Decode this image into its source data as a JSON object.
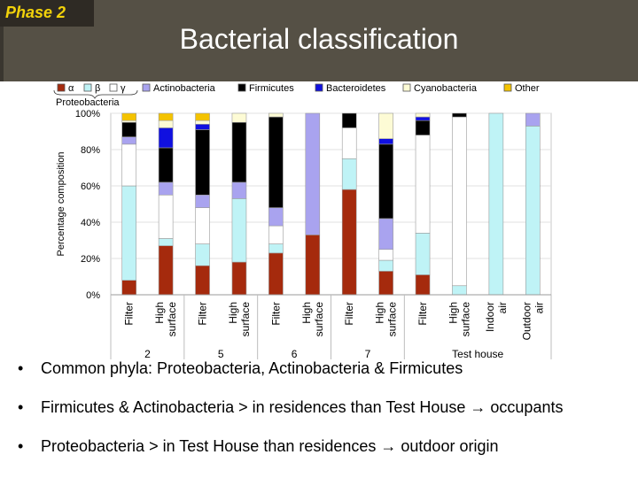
{
  "header": {
    "phase": "Phase 2",
    "title": "Bacterial classification"
  },
  "bullets": [
    "Common phyla: Proteobacteria, Actinobacteria & Firmicutes",
    "Firmicutes & Actinobacteria > in residences than Test House → occupants",
    "Proteobacteria > in Test House than residences → outdoor origin"
  ],
  "chart_data": {
    "type": "bar",
    "stacked": true,
    "ylabel": "Percentage composition",
    "yticks": [
      "0%",
      "20%",
      "40%",
      "60%",
      "80%",
      "100%"
    ],
    "ylim": [
      0,
      100
    ],
    "categories": [
      "Filter",
      "High surface",
      "Filter",
      "High surface",
      "Filter",
      "High surface",
      "Filter",
      "High surface",
      "Filter",
      "High surface",
      "Indoor air",
      "Outdoor air"
    ],
    "groups": [
      {
        "label": "2",
        "members": [
          0,
          1
        ]
      },
      {
        "label": "5",
        "members": [
          2,
          3
        ]
      },
      {
        "label": "6",
        "members": [
          4,
          5
        ]
      },
      {
        "label": "7",
        "members": [
          6,
          7
        ]
      },
      {
        "label": "Test house",
        "members": [
          8,
          9,
          10,
          11
        ]
      }
    ],
    "legend_group_label": "Proteobacteria",
    "series": [
      {
        "name": "α",
        "color": "#a52a0d",
        "values": [
          8,
          27,
          16,
          18,
          23,
          33,
          58,
          13,
          11,
          0,
          0,
          0
        ]
      },
      {
        "name": "β",
        "color": "#bff3f6",
        "values": [
          52,
          4,
          12,
          35,
          5,
          0,
          17,
          6,
          23,
          5,
          100,
          93
        ]
      },
      {
        "name": "γ",
        "color": "#ffffff",
        "values": [
          23,
          24,
          20,
          0,
          10,
          0,
          17,
          6,
          54,
          93,
          0,
          0
        ]
      },
      {
        "name": "Actinobacteria",
        "color": "#a9a3ef",
        "values": [
          4,
          7,
          7,
          9,
          10,
          67,
          0,
          17,
          0,
          0,
          0,
          7
        ]
      },
      {
        "name": "Firmicutes",
        "color": "#000000",
        "values": [
          8,
          19,
          36,
          33,
          50,
          0,
          8,
          41,
          8,
          2,
          0,
          0
        ]
      },
      {
        "name": "Bacteroidetes",
        "color": "#1010e0",
        "values": [
          0,
          11,
          3,
          0,
          0,
          0,
          0,
          3,
          2,
          0,
          0,
          0
        ]
      },
      {
        "name": "Cyanobacteria",
        "color": "#fdfbd5",
        "values": [
          1,
          4,
          2,
          5,
          2,
          0,
          0,
          14,
          2,
          0,
          0,
          0
        ]
      },
      {
        "name": "Other",
        "color": "#f4c300",
        "values": [
          4,
          4,
          4,
          0,
          0,
          0,
          0,
          0,
          0,
          0,
          0,
          0
        ]
      }
    ]
  }
}
